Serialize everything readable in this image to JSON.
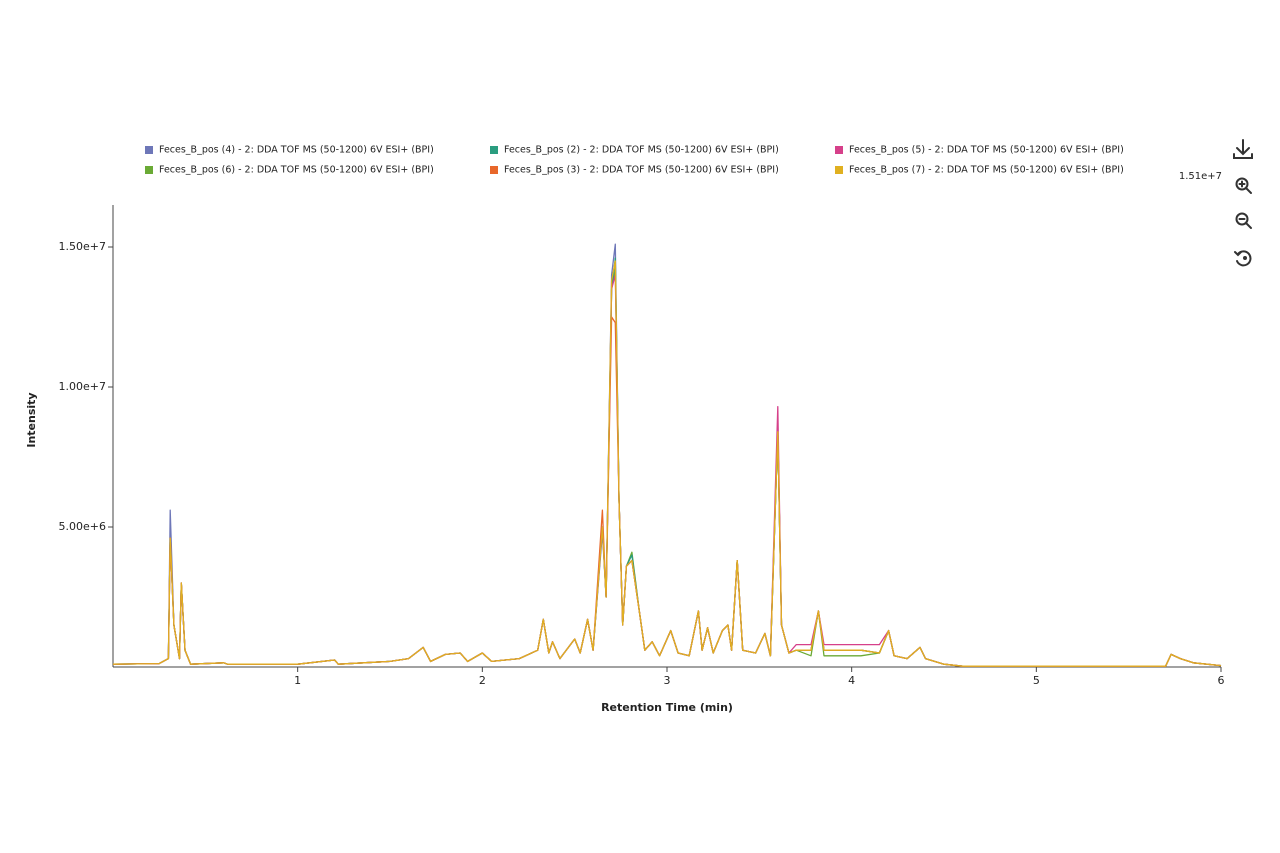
{
  "chart_data": {
    "type": "line",
    "x_label": "Retention Time (min)",
    "y_label": "Intensity",
    "annotation": "1.51e+7",
    "x": [
      0,
      0.25,
      0.3,
      0.31,
      0.33,
      0.36,
      0.37,
      0.39,
      0.42,
      0.6,
      0.62,
      1.0,
      1.2,
      1.22,
      1.5,
      1.6,
      1.68,
      1.72,
      1.8,
      1.88,
      1.92,
      2.0,
      2.05,
      2.2,
      2.3,
      2.33,
      2.36,
      2.38,
      2.42,
      2.5,
      2.53,
      2.57,
      2.6,
      2.65,
      2.67,
      2.7,
      2.72,
      2.74,
      2.76,
      2.78,
      2.81,
      2.85,
      2.88,
      2.92,
      2.96,
      3.02,
      3.06,
      3.12,
      3.17,
      3.19,
      3.22,
      3.25,
      3.3,
      3.33,
      3.35,
      3.38,
      3.41,
      3.48,
      3.53,
      3.56,
      3.6,
      3.62,
      3.66,
      3.7,
      3.78,
      3.82,
      3.85,
      3.95,
      4.05,
      4.15,
      4.2,
      4.23,
      4.3,
      4.37,
      4.4,
      4.5,
      4.6,
      5.0,
      5.7,
      5.73,
      5.78,
      5.85,
      6.0
    ],
    "series": [
      {
        "name": "Feces_B_pos (4) - 2: DDA TOF MS (50-1200) 6V ESI+ (BPI)",
        "color": "#6e77b8",
        "values": [
          100000.0,
          120000.0,
          300000.0,
          5600000.0,
          1500000.0,
          300000.0,
          3000000.0,
          600000.0,
          100000.0,
          150000.0,
          100000.0,
          100000.0,
          250000.0,
          100000.0,
          200000.0,
          300000.0,
          700000.0,
          200000.0,
          450000.0,
          500000.0,
          200000.0,
          500000.0,
          200000.0,
          300000.0,
          600000.0,
          1700000.0,
          500000.0,
          900000.0,
          300000.0,
          1000000.0,
          500000.0,
          1700000.0,
          600000.0,
          4800000.0,
          2500000.0,
          14000000.0,
          15100000.0,
          6000000.0,
          1500000.0,
          3600000.0,
          3800000.0,
          2000000.0,
          600000.0,
          900000.0,
          400000.0,
          1300000.0,
          500000.0,
          400000.0,
          2000000.0,
          600000.0,
          1400000.0,
          500000.0,
          1300000.0,
          1500000.0,
          600000.0,
          3800000.0,
          600000.0,
          500000.0,
          1200000.0,
          400000.0,
          8400000.0,
          1500000.0,
          500000.0,
          600000.0,
          600000.0,
          2000000.0,
          600000.0,
          600000.0,
          600000.0,
          500000.0,
          1300000.0,
          400000.0,
          300000.0,
          700000.0,
          300000.0,
          100000.0,
          30000.0,
          30000.0,
          30000.0,
          450000.0,
          300000.0,
          150000.0,
          50000.0
        ]
      },
      {
        "name": "Feces_B_pos (6) - 2: DDA TOF MS (50-1200) 6V ESI+ (BPI)",
        "color": "#6aaa35",
        "values": [
          100000.0,
          120000.0,
          300000.0,
          4600000.0,
          1500000.0,
          300000.0,
          3000000.0,
          600000.0,
          100000.0,
          150000.0,
          100000.0,
          100000.0,
          250000.0,
          100000.0,
          200000.0,
          300000.0,
          700000.0,
          200000.0,
          450000.0,
          500000.0,
          200000.0,
          500000.0,
          200000.0,
          300000.0,
          600000.0,
          1700000.0,
          500000.0,
          900000.0,
          300000.0,
          1000000.0,
          500000.0,
          1700000.0,
          600000.0,
          5000000.0,
          2500000.0,
          13500000.0,
          14200000.0,
          6000000.0,
          1500000.0,
          3600000.0,
          4100000.0,
          2000000.0,
          600000.0,
          900000.0,
          400000.0,
          1300000.0,
          500000.0,
          400000.0,
          2000000.0,
          600000.0,
          1400000.0,
          500000.0,
          1300000.0,
          1500000.0,
          600000.0,
          3800000.0,
          600000.0,
          500000.0,
          1200000.0,
          400000.0,
          8400000.0,
          1500000.0,
          500000.0,
          600000.0,
          400000.0,
          2000000.0,
          400000.0,
          400000.0,
          400000.0,
          500000.0,
          1300000.0,
          400000.0,
          300000.0,
          700000.0,
          300000.0,
          100000.0,
          30000.0,
          30000.0,
          30000.0,
          450000.0,
          300000.0,
          150000.0,
          50000.0
        ]
      },
      {
        "name": "Feces_B_pos (2) - 2: DDA TOF MS (50-1200) 6V ESI+ (BPI)",
        "color": "#2a9d7f",
        "values": [
          100000.0,
          120000.0,
          300000.0,
          4600000.0,
          1500000.0,
          300000.0,
          3000000.0,
          600000.0,
          100000.0,
          150000.0,
          100000.0,
          100000.0,
          250000.0,
          100000.0,
          200000.0,
          300000.0,
          700000.0,
          200000.0,
          450000.0,
          500000.0,
          200000.0,
          500000.0,
          200000.0,
          300000.0,
          600000.0,
          1700000.0,
          500000.0,
          900000.0,
          300000.0,
          1000000.0,
          500000.0,
          1700000.0,
          600000.0,
          5000000.0,
          2500000.0,
          13500000.0,
          14600000.0,
          6000000.0,
          1500000.0,
          3600000.0,
          4000000.0,
          2000000.0,
          600000.0,
          900000.0,
          400000.0,
          1300000.0,
          500000.0,
          400000.0,
          2000000.0,
          600000.0,
          1400000.0,
          500000.0,
          1300000.0,
          1500000.0,
          600000.0,
          3800000.0,
          600000.0,
          500000.0,
          1200000.0,
          400000.0,
          8400000.0,
          1500000.0,
          500000.0,
          600000.0,
          600000.0,
          2000000.0,
          600000.0,
          600000.0,
          600000.0,
          500000.0,
          1300000.0,
          400000.0,
          300000.0,
          700000.0,
          300000.0,
          100000.0,
          30000.0,
          30000.0,
          30000.0,
          450000.0,
          300000.0,
          150000.0,
          50000.0
        ]
      },
      {
        "name": "Feces_B_pos (3) - 2: DDA TOF MS (50-1200) 6V ESI+ (BPI)",
        "color": "#e8672a",
        "values": [
          100000.0,
          120000.0,
          300000.0,
          4600000.0,
          1500000.0,
          300000.0,
          3000000.0,
          600000.0,
          100000.0,
          150000.0,
          100000.0,
          100000.0,
          250000.0,
          100000.0,
          200000.0,
          300000.0,
          700000.0,
          200000.0,
          450000.0,
          500000.0,
          200000.0,
          500000.0,
          200000.0,
          300000.0,
          600000.0,
          1700000.0,
          500000.0,
          900000.0,
          300000.0,
          1000000.0,
          500000.0,
          1700000.0,
          600000.0,
          5600000.0,
          2500000.0,
          12500000.0,
          12300000.0,
          6000000.0,
          1500000.0,
          3600000.0,
          3800000.0,
          2000000.0,
          600000.0,
          900000.0,
          400000.0,
          1300000.0,
          500000.0,
          400000.0,
          2000000.0,
          600000.0,
          1400000.0,
          500000.0,
          1300000.0,
          1500000.0,
          600000.0,
          3800000.0,
          600000.0,
          500000.0,
          1200000.0,
          400000.0,
          8500000.0,
          1500000.0,
          500000.0,
          600000.0,
          600000.0,
          2000000.0,
          600000.0,
          600000.0,
          600000.0,
          500000.0,
          1300000.0,
          400000.0,
          300000.0,
          700000.0,
          300000.0,
          100000.0,
          30000.0,
          30000.0,
          30000.0,
          450000.0,
          300000.0,
          150000.0,
          50000.0
        ]
      },
      {
        "name": "Feces_B_pos (5) - 2: DDA TOF MS (50-1200) 6V ESI+ (BPI)",
        "color": "#d6408a",
        "values": [
          100000.0,
          120000.0,
          300000.0,
          4600000.0,
          1500000.0,
          300000.0,
          3000000.0,
          600000.0,
          100000.0,
          150000.0,
          100000.0,
          100000.0,
          250000.0,
          100000.0,
          200000.0,
          300000.0,
          700000.0,
          200000.0,
          450000.0,
          500000.0,
          200000.0,
          500000.0,
          200000.0,
          300000.0,
          600000.0,
          1700000.0,
          500000.0,
          900000.0,
          300000.0,
          1000000.0,
          500000.0,
          1700000.0,
          600000.0,
          5000000.0,
          2500000.0,
          13500000.0,
          14000000.0,
          6000000.0,
          1500000.0,
          3600000.0,
          3800000.0,
          2000000.0,
          600000.0,
          900000.0,
          400000.0,
          1300000.0,
          500000.0,
          400000.0,
          2000000.0,
          600000.0,
          1400000.0,
          500000.0,
          1300000.0,
          1500000.0,
          600000.0,
          3800000.0,
          600000.0,
          500000.0,
          1200000.0,
          400000.0,
          9300000.0,
          1500000.0,
          500000.0,
          800000.0,
          800000.0,
          2000000.0,
          800000.0,
          800000.0,
          800000.0,
          800000.0,
          1300000.0,
          400000.0,
          300000.0,
          700000.0,
          300000.0,
          100000.0,
          30000.0,
          30000.0,
          30000.0,
          450000.0,
          300000.0,
          150000.0,
          50000.0
        ]
      },
      {
        "name": "Feces_B_pos (7) - 2: DDA TOF MS (50-1200) 6V ESI+ (BPI)",
        "color": "#e0b020",
        "values": [
          100000.0,
          120000.0,
          300000.0,
          4600000.0,
          1500000.0,
          300000.0,
          3000000.0,
          600000.0,
          100000.0,
          150000.0,
          100000.0,
          100000.0,
          250000.0,
          100000.0,
          200000.0,
          300000.0,
          700000.0,
          200000.0,
          450000.0,
          500000.0,
          200000.0,
          500000.0,
          200000.0,
          300000.0,
          600000.0,
          1700000.0,
          500000.0,
          900000.0,
          300000.0,
          1000000.0,
          500000.0,
          1700000.0,
          600000.0,
          5000000.0,
          2500000.0,
          13800000.0,
          14500000.0,
          6000000.0,
          1500000.0,
          3600000.0,
          3800000.0,
          2000000.0,
          600000.0,
          900000.0,
          400000.0,
          1300000.0,
          500000.0,
          400000.0,
          2000000.0,
          600000.0,
          1400000.0,
          500000.0,
          1300000.0,
          1500000.0,
          600000.0,
          3800000.0,
          600000.0,
          500000.0,
          1200000.0,
          400000.0,
          8400000.0,
          1500000.0,
          500000.0,
          600000.0,
          600000.0,
          2000000.0,
          600000.0,
          600000.0,
          600000.0,
          500000.0,
          1300000.0,
          400000.0,
          300000.0,
          700000.0,
          300000.0,
          100000.0,
          30000.0,
          30000.0,
          30000.0,
          450000.0,
          300000.0,
          150000.0,
          50000.0
        ]
      }
    ],
    "xlim": [
      0,
      6
    ],
    "xticks": [
      1,
      2,
      3,
      4,
      5,
      6
    ],
    "ylim": [
      0,
      16500000
    ],
    "yticks": [
      {
        "value": 5000000,
        "label": "5.00e+6"
      },
      {
        "value": 10000000,
        "label": "1.00e+7"
      },
      {
        "value": 15000000,
        "label": "1.50e+7"
      }
    ],
    "grid": false
  }
}
